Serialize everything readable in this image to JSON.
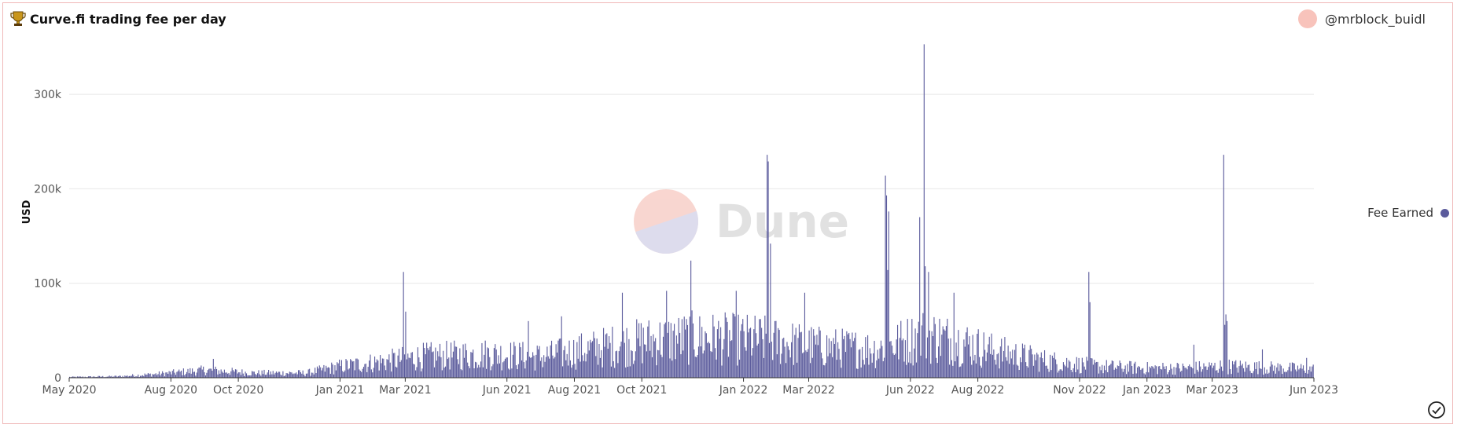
{
  "header": {
    "title": "Curve.fi trading fee per day",
    "trophy_icon": "trophy-icon"
  },
  "author": {
    "handle": "@mrblock_buidl",
    "avatar_color": "#f8c3bb"
  },
  "watermark": {
    "text": "Dune"
  },
  "legend": {
    "label": "Fee Earned",
    "color": "#5b5b9c"
  },
  "status_icon": "check-circle-icon",
  "colors": {
    "bar": "#5b5b9c",
    "grid": "#e8e8e8",
    "axis": "#333333"
  },
  "chart_data": {
    "type": "bar",
    "title": "Curve.fi trading fee per day",
    "ylabel": "USD",
    "xlabel": "",
    "grid": true,
    "legend_position": "right",
    "ylim": [
      0,
      350000
    ],
    "x_range": [
      "2020-05-01",
      "2023-06-01"
    ],
    "y_ticks": [
      {
        "value": 0,
        "label": "0"
      },
      {
        "value": 100000,
        "label": "100k"
      },
      {
        "value": 200000,
        "label": "200k"
      },
      {
        "value": 300000,
        "label": "300k"
      }
    ],
    "x_ticks": [
      {
        "date": "2020-05-01",
        "label": "May 2020"
      },
      {
        "date": "2020-08-01",
        "label": "Aug 2020"
      },
      {
        "date": "2020-10-01",
        "label": "Oct 2020"
      },
      {
        "date": "2021-01-01",
        "label": "Jan 2021"
      },
      {
        "date": "2021-03-01",
        "label": "Mar 2021"
      },
      {
        "date": "2021-06-01",
        "label": "Jun 2021"
      },
      {
        "date": "2021-08-01",
        "label": "Aug 2021"
      },
      {
        "date": "2021-10-01",
        "label": "Oct 2021"
      },
      {
        "date": "2022-01-01",
        "label": "Jan 2022"
      },
      {
        "date": "2022-03-01",
        "label": "Mar 2022"
      },
      {
        "date": "2022-06-01",
        "label": "Jun 2022"
      },
      {
        "date": "2022-08-01",
        "label": "Aug 2022"
      },
      {
        "date": "2022-11-01",
        "label": "Nov 2022"
      },
      {
        "date": "2023-01-01",
        "label": "Jan 2023"
      },
      {
        "date": "2023-03-01",
        "label": "Mar 2023"
      },
      {
        "date": "2023-06-01",
        "label": "Jun 2023"
      }
    ],
    "series": [
      {
        "name": "Fee Earned",
        "baseline": [
          [
            "2020-05-01",
            800
          ],
          [
            "2020-06-15",
            1500
          ],
          [
            "2020-07-20",
            4000
          ],
          [
            "2020-09-01",
            8000
          ],
          [
            "2020-10-15",
            5000
          ],
          [
            "2020-12-01",
            5000
          ],
          [
            "2021-01-01",
            12000
          ],
          [
            "2021-02-15",
            18000
          ],
          [
            "2021-03-15",
            22000
          ],
          [
            "2021-05-15",
            25000
          ],
          [
            "2021-07-01",
            22000
          ],
          [
            "2021-08-15",
            30000
          ],
          [
            "2021-10-01",
            38000
          ],
          [
            "2021-11-15",
            42000
          ],
          [
            "2022-01-15",
            40000
          ],
          [
            "2022-03-15",
            32000
          ],
          [
            "2022-05-01",
            30000
          ],
          [
            "2022-06-15",
            45000
          ],
          [
            "2022-07-15",
            38000
          ],
          [
            "2022-08-15",
            28000
          ],
          [
            "2022-10-01",
            18000
          ],
          [
            "2022-11-15",
            12000
          ],
          [
            "2023-01-01",
            10000
          ],
          [
            "2023-02-01",
            10000
          ],
          [
            "2023-03-15",
            12000
          ],
          [
            "2023-06-01",
            9000
          ]
        ],
        "spikes": [
          {
            "date": "2020-09-08",
            "value": 20000
          },
          {
            "date": "2021-02-27",
            "value": 112000
          },
          {
            "date": "2021-03-01",
            "value": 70000
          },
          {
            "date": "2021-06-20",
            "value": 60000
          },
          {
            "date": "2021-07-20",
            "value": 65000
          },
          {
            "date": "2021-09-13",
            "value": 90000
          },
          {
            "date": "2021-10-23",
            "value": 92000
          },
          {
            "date": "2021-11-14",
            "value": 124000
          },
          {
            "date": "2021-12-25",
            "value": 92000
          },
          {
            "date": "2022-01-22",
            "value": 236000
          },
          {
            "date": "2022-01-23",
            "value": 229000
          },
          {
            "date": "2022-01-25",
            "value": 142000
          },
          {
            "date": "2022-02-25",
            "value": 90000
          },
          {
            "date": "2022-05-09",
            "value": 214000
          },
          {
            "date": "2022-05-10",
            "value": 193000
          },
          {
            "date": "2022-05-12",
            "value": 176000
          },
          {
            "date": "2022-05-11",
            "value": 114000
          },
          {
            "date": "2022-06-09",
            "value": 170000
          },
          {
            "date": "2022-06-13",
            "value": 353000
          },
          {
            "date": "2022-06-14",
            "value": 118000
          },
          {
            "date": "2022-06-17",
            "value": 112000
          },
          {
            "date": "2022-07-10",
            "value": 90000
          },
          {
            "date": "2022-11-09",
            "value": 112000
          },
          {
            "date": "2022-11-10",
            "value": 80000
          },
          {
            "date": "2023-02-12",
            "value": 35000
          },
          {
            "date": "2023-03-11",
            "value": 236000
          },
          {
            "date": "2023-03-12",
            "value": 56000
          },
          {
            "date": "2023-03-13",
            "value": 67000
          },
          {
            "date": "2023-03-14",
            "value": 60000
          },
          {
            "date": "2023-04-15",
            "value": 30000
          },
          {
            "date": "2023-05-25",
            "value": 21000
          }
        ]
      }
    ]
  }
}
